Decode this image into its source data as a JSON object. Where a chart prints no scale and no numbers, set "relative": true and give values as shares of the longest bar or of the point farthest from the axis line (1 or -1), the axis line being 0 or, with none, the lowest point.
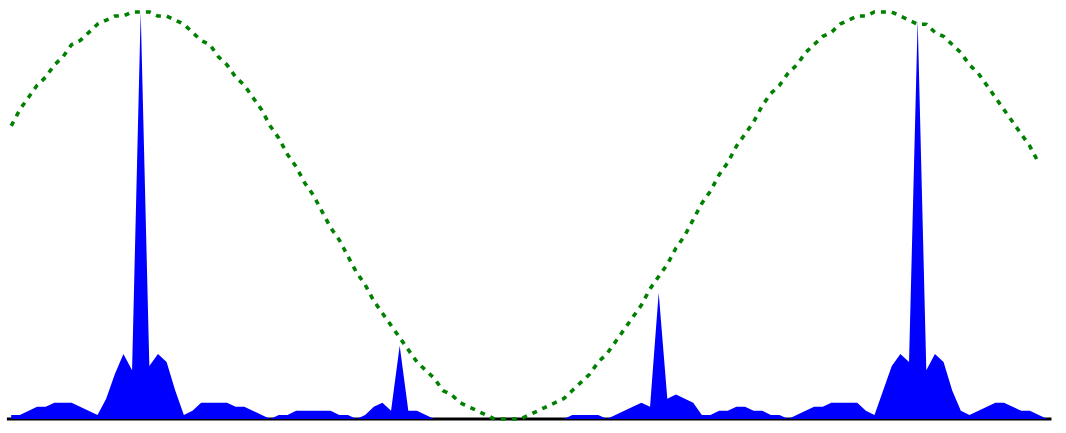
{
  "chart_data": {
    "type": "area",
    "relative": true,
    "marker": "none",
    "categories": [
      null,
      null,
      null,
      null,
      null,
      null,
      null,
      null,
      null,
      null,
      null,
      null,
      null,
      null,
      null,
      null,
      null,
      null,
      null,
      null,
      null,
      null,
      null,
      null,
      null,
      null,
      null,
      null,
      null,
      null,
      null,
      null,
      null,
      null,
      null,
      null,
      null,
      null,
      null,
      null,
      null,
      null,
      null,
      null,
      null,
      null,
      null,
      null,
      null,
      null,
      null,
      null,
      null,
      null,
      null,
      null,
      null,
      null,
      null,
      null,
      null,
      null,
      null,
      null,
      null,
      null,
      null,
      null,
      null,
      null,
      null,
      null,
      null,
      null,
      null,
      null,
      null,
      null,
      null,
      null,
      null,
      null,
      null,
      null,
      null,
      null,
      null,
      null,
      null,
      null,
      null,
      null,
      null,
      null,
      null,
      null,
      null,
      null,
      null,
      null,
      null,
      null,
      null,
      null,
      null,
      null,
      null,
      null,
      null,
      null,
      null,
      null,
      null,
      null,
      null,
      null,
      null,
      null,
      null,
      null,
      null
    ],
    "series": [
      {
        "color": "#0000ff",
        "values": [
          0.01,
          0.01,
          0.02,
          0.03,
          0.03,
          0.04,
          0.04,
          0.04,
          0.03,
          0.02,
          0.01,
          0.05,
          0.11,
          0.16,
          0.12,
          1,
          0.13,
          0.16,
          0.14,
          0.07,
          0.01,
          0.02,
          0.04,
          0.04,
          0.04,
          0.04,
          0.03,
          0.03,
          0.02,
          0.01,
          0,
          0.01,
          0.01,
          0.02,
          0.02,
          0.02,
          0.02,
          0.02,
          0.01,
          0.01,
          0,
          0.01,
          0.03,
          0.04,
          0.02,
          0.18,
          0.02,
          0.02,
          0.01,
          0,
          0,
          0,
          0,
          0,
          0,
          0,
          0,
          0,
          0,
          0,
          0,
          0,
          0,
          0,
          0,
          0.01,
          0.01,
          0.01,
          0.01,
          0,
          0.01,
          0.02,
          0.03,
          0.04,
          0.03,
          0.31,
          0.05,
          0.06,
          0.05,
          0.04,
          0.01,
          0.01,
          0.02,
          0.02,
          0.03,
          0.03,
          0.02,
          0.02,
          0.01,
          0.01,
          0,
          0.01,
          0.02,
          0.03,
          0.03,
          0.04,
          0.04,
          0.04,
          0.04,
          0.02,
          0.01,
          0.07,
          0.13,
          0.16,
          0.14,
          0.98,
          0.12,
          0.16,
          0.14,
          0.07,
          0.02,
          0.01,
          0.02,
          0.03,
          0.04,
          0.04,
          0.03,
          0.02,
          0.02,
          0.01,
          0
        ]
      },
      {
        "type": "line",
        "color": "#008000",
        "line_style": "dashed",
        "values": [
          0.72,
          0.76,
          0.79,
          0.82,
          0.84,
          0.87,
          0.89,
          0.92,
          0.93,
          0.95,
          0.97,
          0.98,
          0.99,
          0.99,
          1,
          1,
          1,
          0.99,
          0.99,
          0.98,
          0.97,
          0.95,
          0.93,
          0.92,
          0.89,
          0.87,
          0.84,
          0.82,
          0.79,
          0.76,
          0.72,
          0.69,
          0.65,
          0.62,
          0.58,
          0.55,
          0.51,
          0.47,
          0.44,
          0.4,
          0.36,
          0.33,
          0.29,
          0.26,
          0.23,
          0.2,
          0.17,
          0.14,
          0.12,
          0.1,
          0.07,
          0.06,
          0.04,
          0.03,
          0.02,
          0.01,
          0,
          0,
          0,
          0,
          0.01,
          0.02,
          0.03,
          0.04,
          0.05,
          0.07,
          0.09,
          0.11,
          0.14,
          0.16,
          0.19,
          0.22,
          0.25,
          0.28,
          0.32,
          0.35,
          0.38,
          0.42,
          0.45,
          0.49,
          0.53,
          0.56,
          0.6,
          0.63,
          0.67,
          0.7,
          0.73,
          0.77,
          0.8,
          0.82,
          0.85,
          0.87,
          0.9,
          0.92,
          0.94,
          0.95,
          0.97,
          0.98,
          0.99,
          0.99,
          1,
          1,
          1,
          0.99,
          0.98,
          0.97,
          0.97,
          0.95,
          0.94,
          0.92,
          0.9,
          0.87,
          0.85,
          0.82,
          0.79,
          0.76,
          0.73,
          0.7,
          0.67,
          0.63,
          null
        ]
      }
    ]
  }
}
